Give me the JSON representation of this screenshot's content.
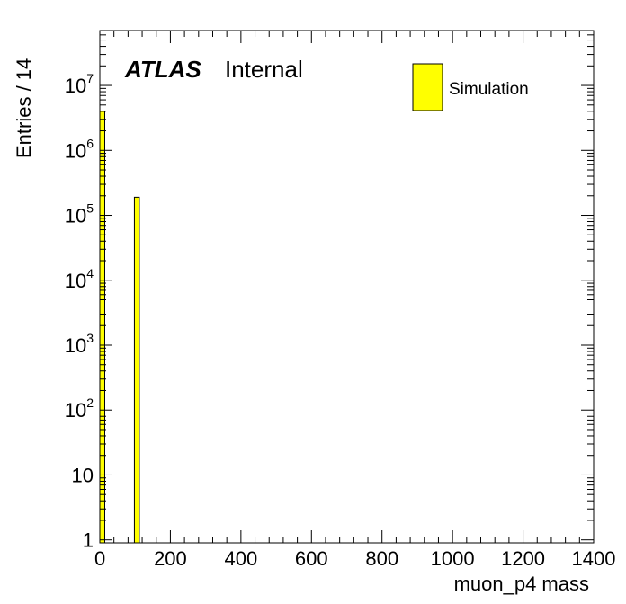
{
  "chart_data": {
    "type": "bar",
    "title": "",
    "xlabel": "muon_p4 mass",
    "ylabel": "Entries / 14",
    "xlim": [
      0,
      1400
    ],
    "ylim": [
      0.9,
      70000000
    ],
    "yscale": "log",
    "bin_width": 14,
    "bars": [
      {
        "x0": 0,
        "x1": 14,
        "value": 4000000
      },
      {
        "x0": 98,
        "x1": 112,
        "value": 190000
      }
    ],
    "x_ticks": [
      "0",
      "200",
      "400",
      "600",
      "800",
      "1000",
      "1200",
      "1400"
    ],
    "y_ticks": [
      {
        "value": 1,
        "base": "1",
        "exp": ""
      },
      {
        "value": 10,
        "base": "10",
        "exp": ""
      },
      {
        "value": 100,
        "base": "10",
        "exp": "2"
      },
      {
        "value": 1000,
        "base": "10",
        "exp": "3"
      },
      {
        "value": 10000,
        "base": "10",
        "exp": "4"
      },
      {
        "value": 100000,
        "base": "10",
        "exp": "5"
      },
      {
        "value": 1000000,
        "base": "10",
        "exp": "6"
      },
      {
        "value": 10000000,
        "base": "10",
        "exp": "7"
      }
    ],
    "legend": {
      "label": "Simulation",
      "position": "top-right"
    },
    "colors": {
      "fill": "#ffff00",
      "edge": "#000000"
    },
    "label_atlas": "ATLAS",
    "label_status": "Internal",
    "grid": false
  }
}
